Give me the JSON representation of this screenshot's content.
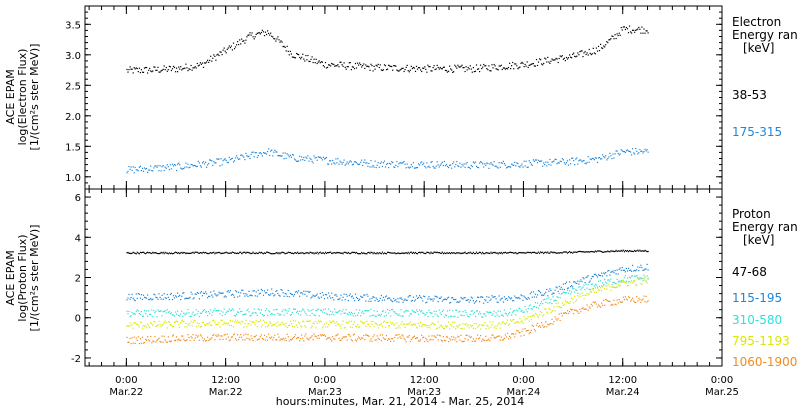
{
  "chart_data": [
    {
      "type": "scatter",
      "panel": "electron",
      "ylabel_lines": [
        "ACE EPAM",
        "log(Electron Flux)",
        "[1/(cm²s ster MeV)]"
      ],
      "ylim": [
        0.8,
        3.8
      ],
      "yticks": [
        1.0,
        1.5,
        2.0,
        2.5,
        3.0,
        3.5
      ],
      "legend": {
        "title_lines": [
          "Electron",
          "Energy ran",
          "[keV]"
        ],
        "placement": "right"
      },
      "series": [
        {
          "name": "38-53",
          "color": "#000000",
          "x": [
            0,
            6,
            12,
            18,
            24,
            30,
            34,
            36,
            40,
            48,
            60,
            72,
            84,
            96,
            108,
            114,
            117,
            120,
            126
          ],
          "y": [
            2.75,
            2.76,
            2.78,
            2.84,
            3.08,
            3.32,
            3.38,
            3.28,
            3.02,
            2.85,
            2.8,
            2.78,
            2.78,
            2.85,
            2.98,
            3.1,
            3.25,
            3.43,
            3.42
          ]
        },
        {
          "name": "175-315",
          "color": "#1f86d8",
          "x": [
            0,
            12,
            24,
            34,
            40,
            60,
            84,
            96,
            108,
            114,
            117,
            120,
            126
          ],
          "y": [
            1.12,
            1.17,
            1.26,
            1.42,
            1.32,
            1.22,
            1.2,
            1.22,
            1.26,
            1.3,
            1.36,
            1.42,
            1.42
          ]
        }
      ]
    },
    {
      "type": "scatter",
      "panel": "proton",
      "ylabel_lines": [
        "ACE EPAM",
        "log(Proton Flux)",
        "[1/(cm²s ster MeV)]"
      ],
      "ylim": [
        -2.4,
        6.4
      ],
      "yticks": [
        -2,
        0,
        2,
        4,
        6
      ],
      "legend": {
        "title_lines": [
          "Proton",
          "Energy ran",
          "[keV]"
        ],
        "placement": "right"
      },
      "series": [
        {
          "name": "47-68",
          "color": "#000000",
          "x": [
            0,
            24,
            48,
            72,
            96,
            108,
            114,
            120,
            126
          ],
          "y": [
            3.25,
            3.25,
            3.25,
            3.25,
            3.25,
            3.28,
            3.32,
            3.35,
            3.35
          ]
        },
        {
          "name": "115-195",
          "color": "#1f86d8",
          "x": [
            0,
            12,
            24,
            36,
            48,
            60,
            72,
            84,
            96,
            102,
            108,
            114,
            120,
            126
          ],
          "y": [
            1.05,
            1.1,
            1.2,
            1.3,
            1.1,
            1.0,
            0.95,
            0.9,
            1.05,
            1.3,
            1.75,
            2.1,
            2.45,
            2.55
          ]
        },
        {
          "name": "310-580",
          "color": "#2ee0d8",
          "x": [
            0,
            12,
            24,
            48,
            72,
            90,
            96,
            102,
            108,
            114,
            120,
            126
          ],
          "y": [
            0.25,
            0.25,
            0.3,
            0.3,
            0.25,
            0.2,
            0.4,
            0.85,
            1.35,
            1.7,
            1.95,
            2.0
          ]
        },
        {
          "name": "795-1193",
          "color": "#d8e800",
          "x": [
            0,
            12,
            24,
            48,
            72,
            90,
            96,
            102,
            108,
            114,
            120,
            126
          ],
          "y": [
            -0.35,
            -0.3,
            -0.25,
            -0.3,
            -0.35,
            -0.35,
            -0.1,
            0.4,
            0.95,
            1.4,
            1.75,
            1.85
          ]
        },
        {
          "name": "1060-1900",
          "color": "#f28a1e",
          "x": [
            0,
            12,
            24,
            48,
            72,
            90,
            96,
            102,
            108,
            114,
            120,
            126
          ],
          "y": [
            -1.1,
            -1.0,
            -0.95,
            -0.95,
            -1.0,
            -1.0,
            -0.7,
            -0.2,
            0.35,
            0.7,
            0.9,
            0.95
          ]
        }
      ]
    }
  ],
  "xaxis": {
    "xlim": [
      -10,
      144
    ],
    "ticks": [
      {
        "x": 0,
        "time": "0:00",
        "date": "Mar.22"
      },
      {
        "x": 24,
        "time": "12:00",
        "date": "Mar.22"
      },
      {
        "x": 48,
        "time": "0:00",
        "date": "Mar.23"
      },
      {
        "x": 72,
        "time": "12:00",
        "date": "Mar.23"
      },
      {
        "x": 96,
        "time": "0:00",
        "date": "Mar.24"
      },
      {
        "x": 120,
        "time": "12:00",
        "date": "Mar.24"
      },
      {
        "x": 144,
        "time": "0:00",
        "date": "Mar.25"
      }
    ],
    "label": "hours:minutes, Mar. 21, 2014 - Mar. 25, 2014"
  }
}
